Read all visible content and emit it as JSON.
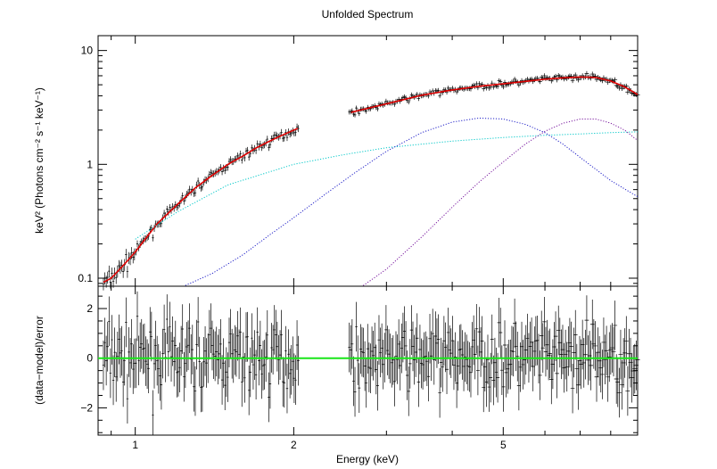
{
  "chart_data": {
    "type": "line",
    "title": "Unfolded Spectrum",
    "xlabel": "Energy (keV)",
    "panels": [
      {
        "name": "top",
        "yscale": "log",
        "ylabel": "keV² (Photons cm⁻² s⁻¹ keV⁻¹)",
        "xlim": [
          0.85,
          9.0
        ],
        "ylim": [
          0.085,
          13.5
        ],
        "yticks": [
          {
            "value": 0.1,
            "label": "0.1"
          },
          {
            "value": 1,
            "label": "1"
          },
          {
            "value": 10,
            "label": "10"
          }
        ],
        "data_gap": [
          2.05,
          2.55
        ],
        "series": [
          {
            "name": "total model",
            "color": "#e00000",
            "style": "solid",
            "x": [
              0.87,
              0.9,
              0.95,
              1.0,
              1.1,
              1.2,
              1.3,
              1.4,
              1.5,
              1.6,
              1.7,
              1.8,
              1.9,
              2.05,
              2.6,
              3.0,
              3.5,
              4.0,
              4.5,
              5.0,
              5.5,
              6.0,
              6.5,
              7.0,
              7.5,
              8.0,
              8.5,
              9.0
            ],
            "y": [
              0.092,
              0.1,
              0.13,
              0.17,
              0.3,
              0.44,
              0.62,
              0.8,
              1.0,
              1.18,
              1.4,
              1.6,
              1.8,
              2.1,
              2.9,
              3.4,
              4.05,
              4.5,
              4.85,
              5.1,
              5.35,
              5.6,
              5.75,
              5.85,
              5.8,
              5.4,
              4.8,
              4.1
            ]
          },
          {
            "name": "component 1",
            "color": "#00c8c8",
            "style": "dotted",
            "x": [
              1.0,
              1.2,
              1.5,
              2.0,
              2.5,
              3.0,
              4.0,
              5.0,
              6.0,
              7.0,
              8.0,
              9.0
            ],
            "y": [
              0.22,
              0.38,
              0.66,
              1.0,
              1.22,
              1.4,
              1.6,
              1.72,
              1.8,
              1.85,
              1.9,
              1.93
            ]
          },
          {
            "name": "component 2",
            "color": "#2020c8",
            "style": "dotted",
            "x": [
              1.2,
              1.4,
              1.6,
              1.8,
              2.0,
              2.3,
              2.6,
              3.0,
              3.5,
              4.0,
              4.5,
              5.0,
              5.5,
              6.0,
              6.5,
              7.0,
              8.0,
              9.0
            ],
            "y": [
              0.08,
              0.11,
              0.16,
              0.24,
              0.34,
              0.55,
              0.83,
              1.3,
              1.9,
              2.35,
              2.55,
              2.5,
              2.25,
              1.9,
              1.5,
              1.15,
              0.72,
              0.52
            ]
          },
          {
            "name": "component 3",
            "color": "#7a1aa0",
            "style": "dotted",
            "x": [
              2.65,
              3.0,
              3.5,
              4.0,
              4.5,
              5.0,
              5.5,
              6.0,
              6.5,
              7.0,
              7.5,
              8.0,
              8.5,
              9.0
            ],
            "y": [
              0.08,
              0.12,
              0.23,
              0.42,
              0.7,
              1.05,
              1.5,
              1.95,
              2.3,
              2.5,
              2.5,
              2.3,
              2.0,
              1.62
            ]
          }
        ]
      },
      {
        "name": "bottom",
        "yscale": "linear",
        "ylabel": "(data−model)/error",
        "xlim": [
          0.85,
          9.0
        ],
        "ylim": [
          -3.1,
          2.9
        ],
        "yticks": [
          {
            "value": -2,
            "label": "−2"
          },
          {
            "value": 0,
            "label": "0"
          },
          {
            "value": 2,
            "label": "2"
          }
        ],
        "reference_line": {
          "y": 0,
          "color": "#19e619"
        }
      }
    ],
    "xticks": [
      {
        "value": 1,
        "label": "1"
      },
      {
        "value": 2,
        "label": "2"
      },
      {
        "value": 5,
        "label": "5"
      }
    ]
  }
}
